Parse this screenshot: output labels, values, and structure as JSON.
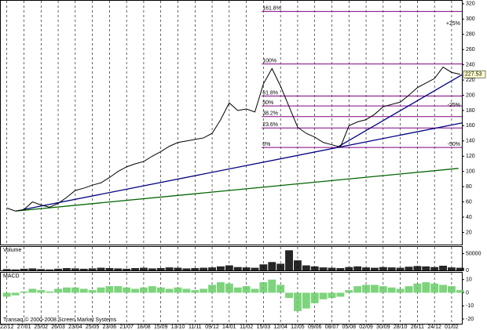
{
  "chart_data": [
    {
      "type": "line",
      "color": "#000000",
      "x": [
        0,
        0.5,
        1,
        1.5,
        2,
        2.5,
        3,
        3.5,
        4,
        4.5,
        5,
        5.5,
        6,
        6.5,
        7,
        7.5,
        8,
        8.5,
        9,
        9.5,
        10,
        10.5,
        11,
        11.5,
        12,
        12.5,
        13,
        13.5,
        14,
        14.5,
        15,
        15.5,
        16,
        16.5,
        17,
        17.5,
        18,
        18.5,
        19,
        19.5,
        20,
        20.5,
        21,
        21.5,
        22,
        22.5,
        23,
        23.5,
        24,
        24.5,
        25,
        25.5,
        26,
        26.5
      ],
      "values": [
        52,
        48,
        50,
        60,
        56,
        53,
        58,
        66,
        75,
        78,
        82,
        85,
        92,
        100,
        106,
        110,
        113,
        120,
        126,
        133,
        138,
        140,
        142,
        144,
        150,
        168,
        190,
        180,
        182,
        178,
        215,
        235,
        212,
        185,
        158,
        150,
        145,
        138,
        135,
        132,
        160,
        165,
        168,
        175,
        185,
        188,
        191,
        200,
        210,
        216,
        222,
        237,
        230,
        227.53
      ],
      "xlim": [
        -0.4,
        26.6
      ],
      "xticks": [
        {
          "value": 0,
          "label": "22/12"
        },
        {
          "value": 1,
          "label": "27/01"
        },
        {
          "value": 2,
          "label": "25/02"
        },
        {
          "value": 3,
          "label": "26/03"
        },
        {
          "value": 4,
          "label": "23/04"
        },
        {
          "value": 5,
          "label": "25/05"
        },
        {
          "value": 6,
          "label": "23/06"
        },
        {
          "value": 7,
          "label": "21/07"
        },
        {
          "value": 8,
          "label": "18/08"
        },
        {
          "value": 9,
          "label": "15/09"
        },
        {
          "value": 10,
          "label": "13/10"
        },
        {
          "value": 11,
          "label": "11/11"
        },
        {
          "value": 12,
          "label": "09/12"
        },
        {
          "value": 13,
          "label": "14/01"
        },
        {
          "value": 14,
          "label": "11/02"
        },
        {
          "value": 15,
          "label": "15/03"
        },
        {
          "value": 16,
          "label": "12/04"
        },
        {
          "value": 17,
          "label": "12/05"
        },
        {
          "value": 18,
          "label": "09/06"
        },
        {
          "value": 19,
          "label": "08/07"
        },
        {
          "value": 20,
          "label": "05/08"
        },
        {
          "value": 21,
          "label": "02/09"
        },
        {
          "value": 22,
          "label": "30/09"
        },
        {
          "value": 23,
          "label": "28/10"
        },
        {
          "value": 24,
          "label": "26/11"
        },
        {
          "value": 25,
          "label": "24/12"
        },
        {
          "value": 26,
          "label": "01/02"
        }
      ],
      "ylim": [
        4,
        324
      ],
      "yticks": [
        20,
        40,
        60,
        80,
        100,
        120,
        140,
        160,
        180,
        200,
        220,
        240,
        260,
        280,
        300,
        320
      ],
      "fib_color": "#800080",
      "fib_start": 14.9,
      "fib_levels": [
        {
          "label": "161.8%",
          "value": 310
        },
        {
          "label": "100%",
          "value": 241
        },
        {
          "label": "61.8%",
          "value": 199
        },
        {
          "label": "50%",
          "value": 186
        },
        {
          "label": "38.2%",
          "value": 172
        },
        {
          "label": "23.6%",
          "value": 157
        },
        {
          "label": "0%",
          "value": 131.5
        }
      ],
      "pct_color": "#cc0000",
      "pct_labels": [
        {
          "label": "+25%",
          "value": 290
        },
        {
          "label": "-25%",
          "value": 183
        },
        {
          "label": "-50%",
          "value": 131.5
        }
      ],
      "trendlines": [
        {
          "color": "#000080",
          "x": [
            0.98,
            26.6
          ],
          "values": [
            50,
            163.6
          ]
        },
        {
          "color": "#006400",
          "x": [
            0.52,
            26.4
          ],
          "values": [
            48,
            104
          ]
        },
        {
          "color": "#000080",
          "x": [
            19.3,
            26.6
          ],
          "values": [
            131.5,
            226.8
          ]
        }
      ]
    },
    {
      "type": "bar",
      "title": "Volume",
      "color": "#000000",
      "values": [
        4000,
        3000,
        5000,
        6000,
        4000,
        3000,
        5000,
        7000,
        6000,
        5000,
        6000,
        8000,
        7000,
        6000,
        5000,
        7000,
        8000,
        6000,
        7000,
        9000,
        8000,
        6000,
        7000,
        8000,
        9000,
        12000,
        15000,
        10000,
        9000,
        8000,
        18000,
        25000,
        20000,
        60000,
        30000,
        15000,
        12000,
        9000,
        8000,
        7000,
        10000,
        12000,
        9000,
        8000,
        10000,
        9000,
        8000,
        11000,
        13000,
        12000,
        10000,
        14000,
        9000,
        8000
      ],
      "ylim": [
        0,
        70000
      ],
      "yticks": [
        0,
        50000
      ]
    },
    {
      "type": "bar",
      "title": "MACD",
      "color": "#66cc66",
      "values": [
        -3,
        -2,
        1,
        3,
        2,
        1,
        3,
        4,
        4,
        3,
        2,
        4,
        5,
        5,
        4,
        3,
        4,
        5,
        4,
        3,
        4,
        3,
        2,
        3,
        6,
        8,
        7,
        4,
        5,
        3,
        8,
        10,
        6,
        -4,
        -14,
        -12,
        -8,
        -5,
        -4,
        -3,
        2,
        5,
        6,
        6,
        5,
        4,
        3,
        5,
        7,
        8,
        7,
        6,
        5,
        2
      ],
      "ylim": [
        -23.6,
        15.2
      ],
      "yticks": [
        -20,
        -10,
        0,
        10
      ],
      "footer": "Transaq © 2000-2008 Screen Market Systems"
    }
  ]
}
